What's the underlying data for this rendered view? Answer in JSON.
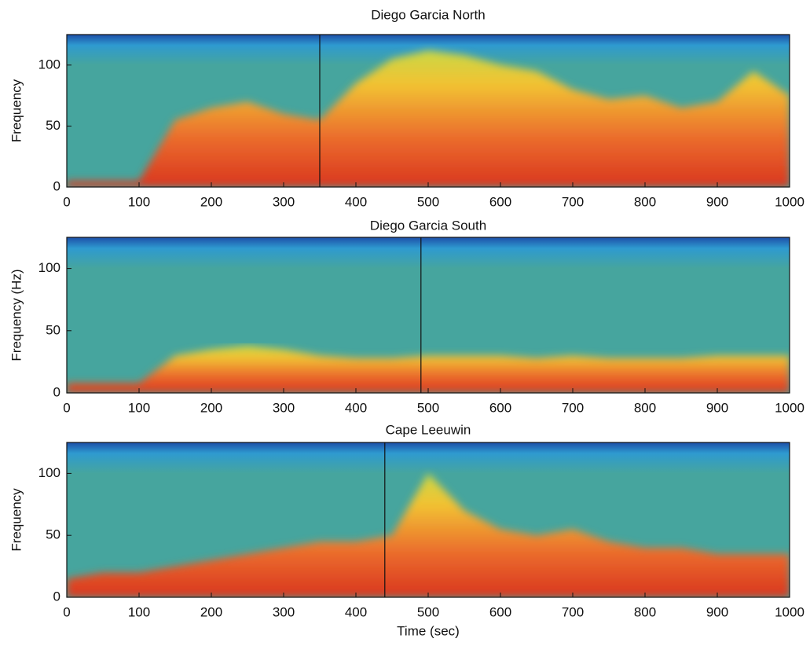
{
  "chart_data": [
    {
      "type": "spectrogram",
      "title": "Diego Garcia North",
      "ylabel": "Frequency",
      "xlim": [
        0,
        1000
      ],
      "ylim": [
        0,
        125
      ],
      "xticks": [
        0,
        100,
        200,
        300,
        400,
        500,
        600,
        700,
        800,
        900,
        1000
      ],
      "yticks": [
        0,
        50,
        100
      ],
      "x": [
        0,
        50,
        100,
        150,
        200,
        250,
        300,
        350,
        400,
        450,
        500,
        550,
        600,
        650,
        700,
        750,
        800,
        850,
        900,
        950,
        1000
      ],
      "values": [
        5,
        5,
        5,
        55,
        65,
        70,
        60,
        55,
        85,
        105,
        112,
        108,
        100,
        95,
        80,
        72,
        75,
        65,
        70,
        95,
        75
      ],
      "event_x": 350,
      "colormap": [
        "#1d4fa8",
        "#2e9ad0",
        "#46a59e",
        "#c9d845",
        "#f2c232",
        "#ea6a2c",
        "#d9361f"
      ]
    },
    {
      "type": "spectrogram",
      "title": "Diego Garcia South",
      "ylabel": "Frequency (Hz)",
      "xlim": [
        0,
        1000
      ],
      "ylim": [
        0,
        125
      ],
      "xticks": [
        0,
        100,
        200,
        300,
        400,
        500,
        600,
        700,
        800,
        900,
        1000
      ],
      "yticks": [
        0,
        50,
        100
      ],
      "x": [
        0,
        50,
        100,
        150,
        200,
        250,
        300,
        350,
        400,
        450,
        500,
        550,
        600,
        650,
        700,
        750,
        800,
        850,
        900,
        950,
        1000
      ],
      "values": [
        8,
        8,
        8,
        30,
        35,
        38,
        35,
        30,
        28,
        28,
        30,
        30,
        30,
        28,
        30,
        28,
        28,
        28,
        30,
        30,
        30
      ],
      "event_x": 490,
      "colormap": [
        "#1d4fa8",
        "#2e9ad0",
        "#46a59e",
        "#c9d845",
        "#f2c232",
        "#ea6a2c",
        "#d9361f"
      ]
    },
    {
      "type": "spectrogram",
      "title": "Cape Leeuwin",
      "ylabel": "Frequency",
      "xlabel": "Time (sec)",
      "xlim": [
        0,
        1000
      ],
      "ylim": [
        0,
        125
      ],
      "xticks": [
        0,
        100,
        200,
        300,
        400,
        500,
        600,
        700,
        800,
        900,
        1000
      ],
      "yticks": [
        0,
        50,
        100
      ],
      "x": [
        0,
        50,
        100,
        150,
        200,
        250,
        300,
        350,
        400,
        450,
        500,
        550,
        600,
        650,
        700,
        750,
        800,
        850,
        900,
        950,
        1000
      ],
      "values": [
        15,
        20,
        20,
        25,
        30,
        35,
        40,
        45,
        45,
        50,
        100,
        70,
        55,
        50,
        55,
        45,
        40,
        40,
        35,
        35,
        35
      ],
      "event_x": 440,
      "colormap": [
        "#1d4fa8",
        "#2e9ad0",
        "#46a59e",
        "#c9d845",
        "#f2c232",
        "#ea6a2c",
        "#d9361f"
      ]
    }
  ]
}
